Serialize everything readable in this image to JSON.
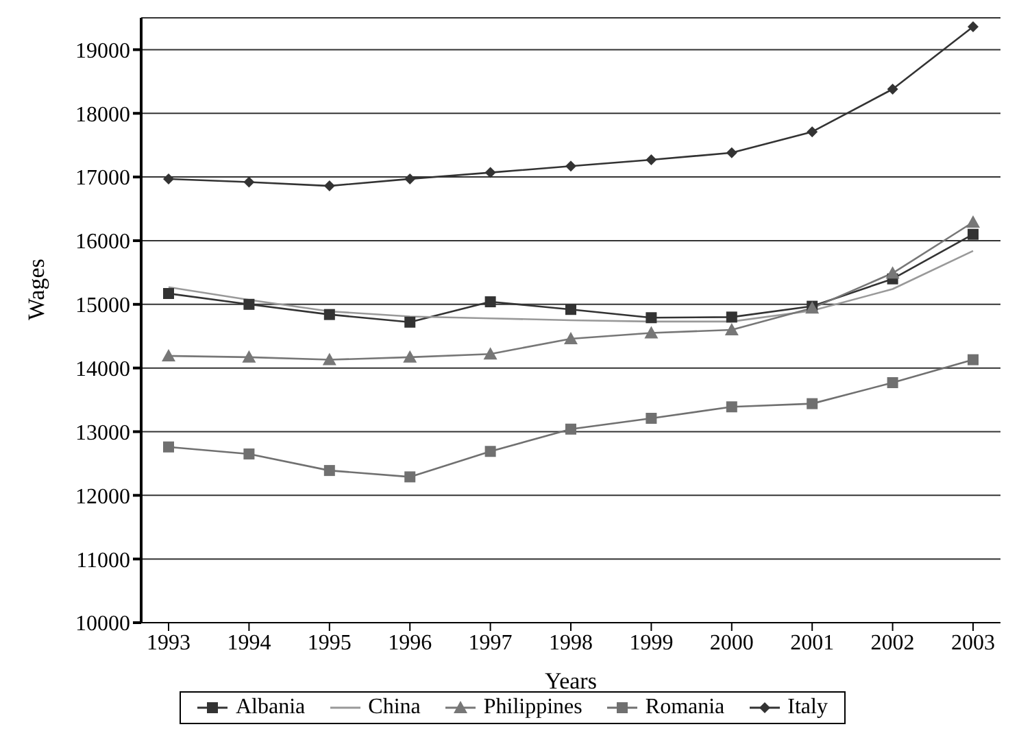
{
  "chart_data": {
    "type": "line",
    "xlabel": "Years",
    "ylabel": "Wages",
    "categories": [
      "1993",
      "1994",
      "1995",
      "1996",
      "1997",
      "1998",
      "1999",
      "2000",
      "2001",
      "2002",
      "2003"
    ],
    "series": [
      {
        "name": "Albania",
        "color": "#333333",
        "marker": "square",
        "values": [
          15170,
          15000,
          14840,
          14720,
          15040,
          14920,
          14790,
          14800,
          14970,
          15400,
          16100
        ]
      },
      {
        "name": "China",
        "color": "#999999",
        "marker": "none",
        "values": [
          15270,
          15070,
          14890,
          14810,
          14780,
          14750,
          14730,
          14730,
          14900,
          15240,
          15840
        ]
      },
      {
        "name": "Philippines",
        "color": "#777777",
        "marker": "triangle",
        "values": [
          14190,
          14170,
          14130,
          14170,
          14220,
          14460,
          14550,
          14600,
          14940,
          15490,
          16290
        ]
      },
      {
        "name": "Romania",
        "color": "#707070",
        "marker": "square",
        "values": [
          12760,
          12650,
          12390,
          12290,
          12690,
          13040,
          13210,
          13390,
          13440,
          13770,
          14130
        ]
      },
      {
        "name": "Italy",
        "color": "#333333",
        "marker": "diamond",
        "values": [
          16970,
          16920,
          16860,
          16970,
          17070,
          17170,
          17270,
          17380,
          17710,
          18380,
          19360
        ]
      }
    ],
    "ylim": [
      10000,
      19500
    ],
    "yticks": [
      10000,
      11000,
      12000,
      13000,
      14000,
      15000,
      16000,
      17000,
      18000,
      19000
    ],
    "grid": "y",
    "legend": "bottom",
    "line_style": "solid"
  }
}
